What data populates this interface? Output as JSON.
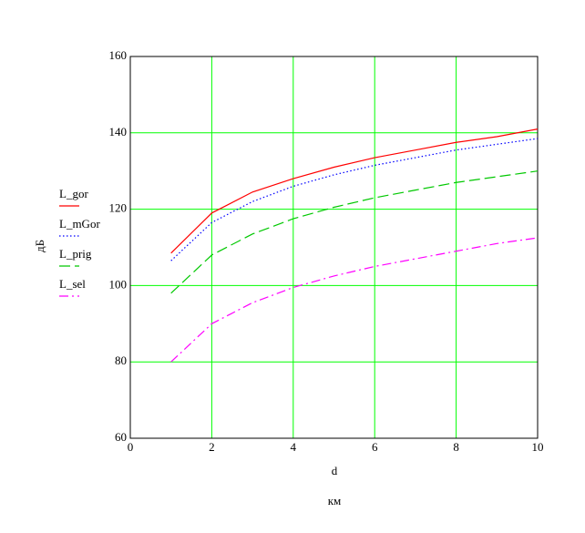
{
  "chart_data": {
    "type": "line",
    "x_label": "d",
    "x_unit": "км",
    "y_label": "дБ",
    "x": [
      1,
      2,
      3,
      4,
      5,
      6,
      7,
      8,
      9,
      10
    ],
    "series": [
      {
        "name": "L_gor",
        "color": "#ff0000",
        "style": "solid",
        "values": [
          108.5,
          119,
          124.5,
          128,
          131,
          133.5,
          135.5,
          137.5,
          139,
          141
        ]
      },
      {
        "name": "L_mGor",
        "color": "#0000ff",
        "style": "dotted",
        "values": [
          106.5,
          116.5,
          122,
          126,
          129,
          131.5,
          133.5,
          135.5,
          137,
          138.5
        ]
      },
      {
        "name": "L_prig",
        "color": "#00c800",
        "style": "dashed",
        "values": [
          98,
          108,
          113.5,
          117.5,
          120.5,
          123,
          125,
          127,
          128.5,
          130
        ]
      },
      {
        "name": "L_sel",
        "color": "#ff00ff",
        "style": "dashdot",
        "values": [
          80,
          90,
          95.5,
          99.5,
          102.5,
          105,
          107,
          109,
          111,
          112.5
        ]
      }
    ],
    "xlim": [
      0,
      10
    ],
    "xticks": [
      0,
      2,
      4,
      6,
      8,
      10
    ],
    "ylim": [
      60,
      160
    ],
    "yticks": [
      60,
      80,
      100,
      120,
      140,
      160
    ],
    "grid": true,
    "grid_color": "#00ff00"
  }
}
